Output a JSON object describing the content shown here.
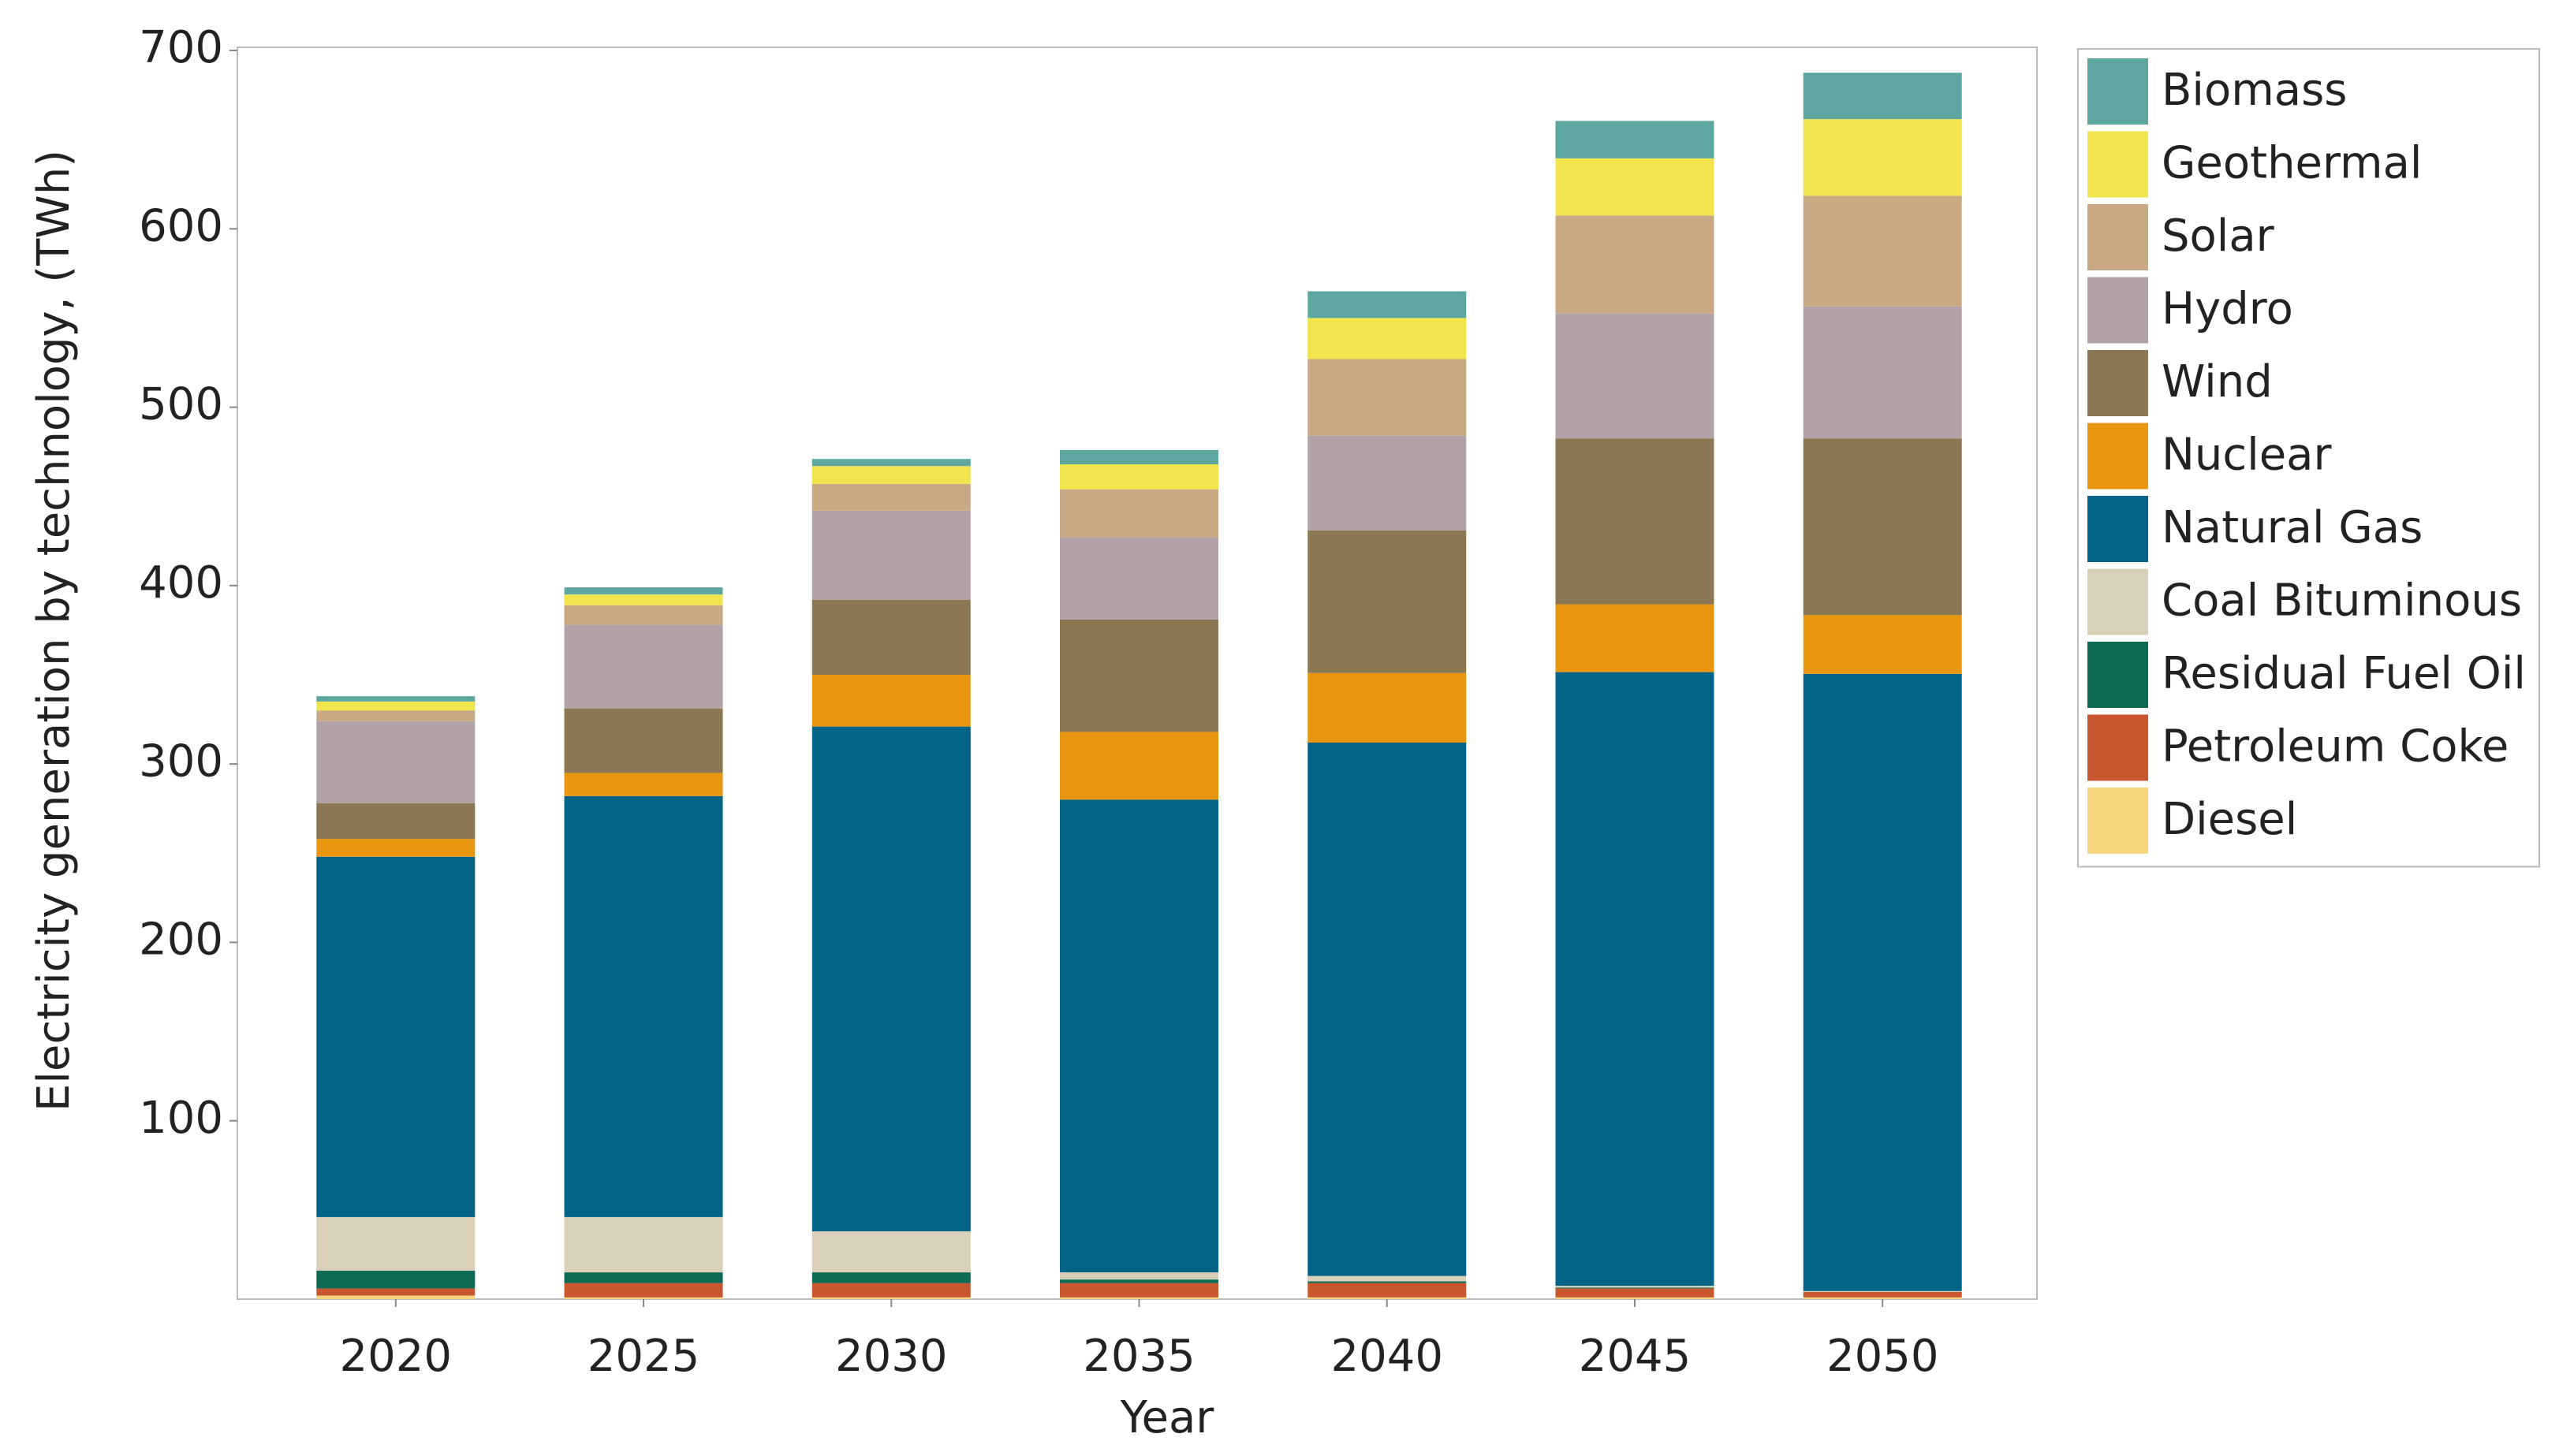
{
  "chart_data": {
    "type": "stacked_bar",
    "x_label": "Year",
    "y_label": "Electricity generation by technology, (TWh)",
    "categories": [
      "2020",
      "2025",
      "2030",
      "2035",
      "2040",
      "2045",
      "2050"
    ],
    "series": [
      {
        "name": "Diesel",
        "color": "#f6d67c",
        "values": [
          2,
          1,
          1,
          1,
          1,
          1,
          1
        ]
      },
      {
        "name": "Petroleum Coke",
        "color": "#c8562f",
        "values": [
          4,
          8,
          8,
          8,
          8,
          5,
          3
        ]
      },
      {
        "name": "Residual Fuel Oil",
        "color": "#0d6a55",
        "values": [
          10,
          6,
          6,
          2,
          1,
          0.5,
          0
        ]
      },
      {
        "name": "Coal Bituminous",
        "color": "#d8d0b9",
        "values": [
          30,
          31,
          23,
          4,
          3,
          1,
          0.5
        ]
      },
      {
        "name": "Natural Gas",
        "color": "#036487",
        "values": [
          202,
          236,
          283,
          265,
          299,
          344,
          346
        ]
      },
      {
        "name": "Nuclear",
        "color": "#e8950f",
        "values": [
          10,
          13,
          29,
          38,
          39,
          38,
          33
        ]
      },
      {
        "name": "Wind",
        "color": "#8b7853",
        "values": [
          20,
          36,
          42,
          63,
          80,
          93,
          99
        ]
      },
      {
        "name": "Hydro",
        "color": "#b1a2a8",
        "values": [
          46,
          47,
          50,
          46,
          53,
          70,
          74
        ]
      },
      {
        "name": "Solar",
        "color": "#c9a884",
        "values": [
          6,
          11,
          15,
          27,
          43,
          55,
          62
        ]
      },
      {
        "name": "Geothermal",
        "color": "#f2e44d",
        "values": [
          5,
          6,
          10,
          14,
          23,
          32,
          43
        ]
      },
      {
        "name": "Biomass",
        "color": "#5ea7a0",
        "values": [
          3,
          4,
          4,
          8,
          15,
          21,
          26
        ]
      }
    ],
    "ylim": [
      0,
      700
    ],
    "yticks": [
      100,
      200,
      300,
      400,
      500,
      600,
      700
    ],
    "legend": "right"
  }
}
